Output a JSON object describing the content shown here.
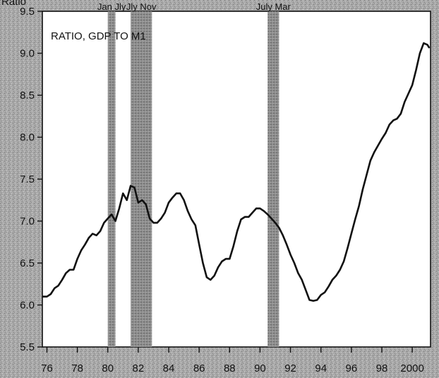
{
  "chart_data": {
    "type": "line",
    "title": "RATIO, GDP TO M1",
    "ylabel": "Ratio",
    "xlabel": "",
    "xlim": [
      1975.7,
      2001.2
    ],
    "ylim": [
      5.5,
      9.5
    ],
    "yticks": [
      5.5,
      6.0,
      6.5,
      7.0,
      7.5,
      8.0,
      8.5,
      9.0,
      9.5
    ],
    "ytick_labels": [
      "5.5",
      "6.0",
      "6.5",
      "7.0",
      "7.5",
      "8.0",
      "8.5",
      "9.0",
      "9.5"
    ],
    "xticks": [
      1976,
      1978,
      1980,
      1982,
      1984,
      1986,
      1988,
      1990,
      1992,
      1994,
      1996,
      1998,
      2000
    ],
    "xtick_labels": [
      "76",
      "78",
      "80",
      "82",
      "84",
      "86",
      "88",
      "90",
      "92",
      "94",
      "96",
      "98",
      "2000"
    ],
    "grid": false,
    "legend": "none",
    "line_color": "#111111",
    "recession_color": "#7f7f7f",
    "recessions": [
      {
        "start": 1980.0,
        "end": 1980.5,
        "labels": [
          "Jan",
          "Jly"
        ]
      },
      {
        "start": 1981.5,
        "end": 1982.9,
        "labels": [
          "Jly",
          "Nov"
        ]
      },
      {
        "start": 1990.5,
        "end": 1991.25,
        "labels": [
          "July",
          "Mar"
        ]
      }
    ],
    "series": [
      {
        "values": [
          [
            1975.75,
            6.1
          ],
          [
            1976.0,
            6.1
          ],
          [
            1976.25,
            6.13
          ],
          [
            1976.5,
            6.2
          ],
          [
            1976.75,
            6.23
          ],
          [
            1977.0,
            6.3
          ],
          [
            1977.25,
            6.38
          ],
          [
            1977.5,
            6.42
          ],
          [
            1977.75,
            6.42
          ],
          [
            1978.0,
            6.55
          ],
          [
            1978.25,
            6.65
          ],
          [
            1978.5,
            6.72
          ],
          [
            1978.75,
            6.8
          ],
          [
            1979.0,
            6.85
          ],
          [
            1979.25,
            6.83
          ],
          [
            1979.5,
            6.88
          ],
          [
            1979.75,
            6.98
          ],
          [
            1980.0,
            7.03
          ],
          [
            1980.25,
            7.08
          ],
          [
            1980.5,
            7.0
          ],
          [
            1980.75,
            7.15
          ],
          [
            1981.0,
            7.33
          ],
          [
            1981.25,
            7.25
          ],
          [
            1981.5,
            7.42
          ],
          [
            1981.75,
            7.4
          ],
          [
            1982.0,
            7.22
          ],
          [
            1982.25,
            7.25
          ],
          [
            1982.5,
            7.2
          ],
          [
            1982.75,
            7.03
          ],
          [
            1983.0,
            6.98
          ],
          [
            1983.25,
            6.98
          ],
          [
            1983.5,
            7.03
          ],
          [
            1983.75,
            7.1
          ],
          [
            1984.0,
            7.22
          ],
          [
            1984.25,
            7.28
          ],
          [
            1984.5,
            7.33
          ],
          [
            1984.75,
            7.33
          ],
          [
            1985.0,
            7.25
          ],
          [
            1985.25,
            7.12
          ],
          [
            1985.5,
            7.02
          ],
          [
            1985.75,
            6.95
          ],
          [
            1986.0,
            6.72
          ],
          [
            1986.25,
            6.5
          ],
          [
            1986.5,
            6.33
          ],
          [
            1986.75,
            6.3
          ],
          [
            1987.0,
            6.35
          ],
          [
            1987.25,
            6.45
          ],
          [
            1987.5,
            6.52
          ],
          [
            1987.75,
            6.55
          ],
          [
            1988.0,
            6.55
          ],
          [
            1988.25,
            6.7
          ],
          [
            1988.5,
            6.88
          ],
          [
            1988.75,
            7.02
          ],
          [
            1989.0,
            7.05
          ],
          [
            1989.25,
            7.05
          ],
          [
            1989.5,
            7.1
          ],
          [
            1989.75,
            7.15
          ],
          [
            1990.0,
            7.15
          ],
          [
            1990.25,
            7.12
          ],
          [
            1990.5,
            7.08
          ],
          [
            1990.75,
            7.03
          ],
          [
            1991.0,
            6.98
          ],
          [
            1991.25,
            6.92
          ],
          [
            1991.5,
            6.83
          ],
          [
            1991.75,
            6.72
          ],
          [
            1992.0,
            6.6
          ],
          [
            1992.25,
            6.5
          ],
          [
            1992.5,
            6.38
          ],
          [
            1992.75,
            6.3
          ],
          [
            1993.0,
            6.18
          ],
          [
            1993.25,
            6.06
          ],
          [
            1993.5,
            6.05
          ],
          [
            1993.75,
            6.06
          ],
          [
            1994.0,
            6.12
          ],
          [
            1994.25,
            6.15
          ],
          [
            1994.5,
            6.22
          ],
          [
            1994.75,
            6.3
          ],
          [
            1995.0,
            6.35
          ],
          [
            1995.25,
            6.42
          ],
          [
            1995.5,
            6.52
          ],
          [
            1995.75,
            6.68
          ],
          [
            1996.0,
            6.85
          ],
          [
            1996.25,
            7.02
          ],
          [
            1996.5,
            7.18
          ],
          [
            1996.75,
            7.38
          ],
          [
            1997.0,
            7.55
          ],
          [
            1997.25,
            7.72
          ],
          [
            1997.5,
            7.82
          ],
          [
            1997.75,
            7.9
          ],
          [
            1998.0,
            7.98
          ],
          [
            1998.25,
            8.05
          ],
          [
            1998.5,
            8.15
          ],
          [
            1998.75,
            8.2
          ],
          [
            1999.0,
            8.22
          ],
          [
            1999.25,
            8.28
          ],
          [
            1999.5,
            8.42
          ],
          [
            1999.75,
            8.52
          ],
          [
            2000.0,
            8.62
          ],
          [
            2000.25,
            8.8
          ],
          [
            2000.5,
            9.0
          ],
          [
            2000.75,
            9.12
          ],
          [
            2001.0,
            9.1
          ],
          [
            2001.1,
            9.07
          ]
        ]
      }
    ]
  }
}
